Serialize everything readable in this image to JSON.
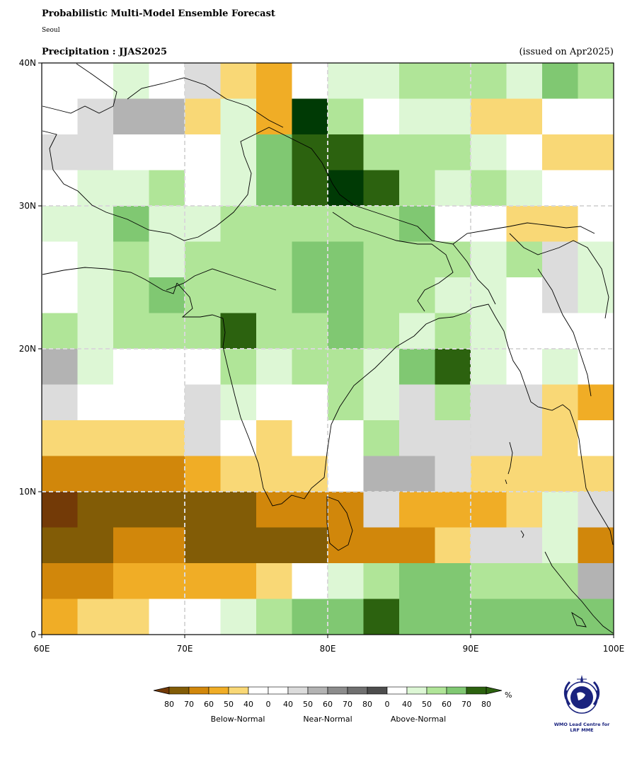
{
  "header": {
    "title": "Probabilistic Multi-Model Ensemble Forecast",
    "subtitle": "Seoul",
    "variable": "Precipitation : JJAS2025",
    "issued": "(issued on Apr2025)"
  },
  "map": {
    "lon_range": [
      60,
      100
    ],
    "lat_range": [
      0,
      40
    ],
    "cell_size_deg": 2.5,
    "x_ticks": [
      "60E",
      "70E",
      "80E",
      "90E",
      "100E"
    ],
    "y_ticks": [
      "0",
      "10N",
      "20N",
      "30N",
      "40N"
    ],
    "grid_lines": true,
    "palette": {
      "B80": "#733a07",
      "B70": "#825c06",
      "B60": "#d1870b",
      "B50": "#f0ad26",
      "B40": "#f9d876",
      "W": "#ffffff",
      "N40": "#dcdcdc",
      "N50": "#b3b3b3",
      "A40": "#ddf7d5",
      "A50": "#b0e598",
      "A60": "#80c872",
      "A70": "#2c620f",
      "A80": "#003a05"
    },
    "rows_north_to_south": [
      [
        "W",
        "W",
        "A40",
        "W",
        "N40",
        "B40",
        "B50",
        "W",
        "A40",
        "A40",
        "A50",
        "A50",
        "A50",
        "A40",
        "A60",
        "A50"
      ],
      [
        "W",
        "N40",
        "N50",
        "N50",
        "B40",
        "A40",
        "B50",
        "A80",
        "A50",
        "W",
        "A40",
        "A40",
        "B40",
        "B40",
        "W",
        "W"
      ],
      [
        "N40",
        "N40",
        "W",
        "W",
        "W",
        "A40",
        "A60",
        "A70",
        "A70",
        "A50",
        "A50",
        "A50",
        "A40",
        "W",
        "B40",
        "B40"
      ],
      [
        "W",
        "A40",
        "A40",
        "A50",
        "W",
        "A40",
        "A60",
        "A70",
        "A80",
        "A70",
        "A50",
        "A40",
        "A50",
        "A40",
        "W",
        "W"
      ],
      [
        "A40",
        "A40",
        "A60",
        "A40",
        "A40",
        "A50",
        "A50",
        "A50",
        "A50",
        "A50",
        "A60",
        "W",
        "W",
        "B40",
        "B40",
        "W"
      ],
      [
        "W",
        "A40",
        "A50",
        "A40",
        "A50",
        "A50",
        "A50",
        "A60",
        "A60",
        "A50",
        "A50",
        "A50",
        "A40",
        "A50",
        "N40",
        "A40"
      ],
      [
        "W",
        "A40",
        "A50",
        "A60",
        "A50",
        "A50",
        "A50",
        "A60",
        "A60",
        "A50",
        "A50",
        "A40",
        "A40",
        "W",
        "N40",
        "A40"
      ],
      [
        "A50",
        "A40",
        "A50",
        "A50",
        "A50",
        "A70",
        "A50",
        "A50",
        "A60",
        "A50",
        "A40",
        "A50",
        "A40",
        "W",
        "W",
        "W"
      ],
      [
        "N50",
        "A40",
        "W",
        "W",
        "W",
        "A50",
        "A40",
        "A50",
        "A50",
        "A40",
        "A60",
        "A70",
        "A40",
        "W",
        "A40",
        "W"
      ],
      [
        "N40",
        "W",
        "W",
        "W",
        "N40",
        "A40",
        "W",
        "W",
        "A50",
        "A40",
        "N40",
        "A50",
        "N40",
        "N40",
        "B40",
        "B50"
      ],
      [
        "B40",
        "B40",
        "B40",
        "B40",
        "N40",
        "W",
        "B40",
        "W",
        "W",
        "A50",
        "N40",
        "N40",
        "N40",
        "N40",
        "B40",
        "W"
      ],
      [
        "B60",
        "B60",
        "B60",
        "B60",
        "B50",
        "B40",
        "B40",
        "B40",
        "W",
        "N50",
        "N50",
        "N40",
        "B40",
        "B40",
        "B40",
        "B40"
      ],
      [
        "B80",
        "B70",
        "B70",
        "B70",
        "B70",
        "B70",
        "B60",
        "B60",
        "B60",
        "N40",
        "B50",
        "B50",
        "B50",
        "B40",
        "A40",
        "N40"
      ],
      [
        "B70",
        "B70",
        "B60",
        "B60",
        "B70",
        "B70",
        "B70",
        "B70",
        "B60",
        "B60",
        "B60",
        "B40",
        "N40",
        "N40",
        "A40",
        "B60"
      ],
      [
        "B60",
        "B60",
        "B50",
        "B50",
        "B50",
        "B50",
        "B40",
        "W",
        "A40",
        "A50",
        "A60",
        "A60",
        "A50",
        "A50",
        "A50",
        "N50"
      ],
      [
        "B50",
        "B40",
        "B40",
        "W",
        "W",
        "A40",
        "A50",
        "A60",
        "A60",
        "A70",
        "A60",
        "A60",
        "A60",
        "A60",
        "A60",
        "A60"
      ]
    ]
  },
  "legend": {
    "unit": "%",
    "swatches": [
      "B70",
      "B60",
      "B50",
      "B40",
      "W",
      "W",
      "N40",
      "N50",
      "N60",
      "N70",
      "N80",
      "W",
      "A40",
      "A50",
      "A60",
      "A70"
    ],
    "extra_colors": {
      "N60": "#8c8c8c",
      "N70": "#707070",
      "N80": "#4d4d4d"
    },
    "labels": [
      "80",
      "70",
      "60",
      "50",
      "40",
      "0",
      "40",
      "50",
      "60",
      "70",
      "80",
      "0",
      "40",
      "50",
      "60",
      "70",
      "80"
    ],
    "categories": [
      "Below-Normal",
      "Near-Normal",
      "Above-Normal"
    ]
  },
  "logo": {
    "icon": "wmo-emblem-icon",
    "text_line1": "WMO Lead Centre for",
    "text_line2": "LRF MME"
  }
}
